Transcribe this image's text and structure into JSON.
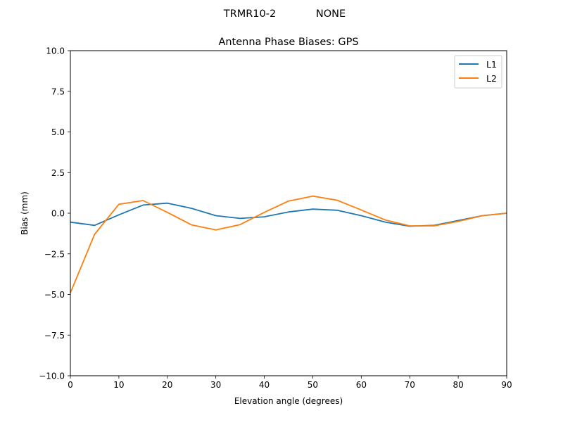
{
  "suptitle_left": "TRMR10-2",
  "suptitle_right": "NONE",
  "chart_data": {
    "type": "line",
    "title": "Antenna Phase Biases: GPS",
    "xlabel": "Elevation angle (degrees)",
    "ylabel": "Bias (mm)",
    "xlim": [
      0,
      90
    ],
    "ylim": [
      -10,
      10
    ],
    "xticks": [
      0,
      10,
      20,
      30,
      40,
      50,
      60,
      70,
      80,
      90
    ],
    "xtick_labels": [
      "0",
      "10",
      "20",
      "30",
      "40",
      "50",
      "60",
      "70",
      "80",
      "90"
    ],
    "yticks": [
      -10,
      -7.5,
      -5,
      -2.5,
      0,
      2.5,
      5,
      7.5,
      10
    ],
    "ytick_labels": [
      "−10.0",
      "−7.5",
      "−5.0",
      "−2.5",
      "0.0",
      "2.5",
      "5.0",
      "7.5",
      "10.0"
    ],
    "grid": false,
    "legend_position": "upper right",
    "x": [
      0,
      5,
      10,
      15,
      20,
      25,
      30,
      35,
      40,
      45,
      50,
      55,
      60,
      65,
      70,
      75,
      80,
      85,
      90
    ],
    "series": [
      {
        "name": "L1",
        "color": "#1f77b4",
        "values": [
          -0.55,
          -0.75,
          -0.1,
          0.5,
          0.62,
          0.3,
          -0.15,
          -0.32,
          -0.22,
          0.08,
          0.25,
          0.18,
          -0.15,
          -0.55,
          -0.8,
          -0.75,
          -0.45,
          -0.15,
          0.0
        ]
      },
      {
        "name": "L2",
        "color": "#ff7f0e",
        "values": [
          -4.9,
          -1.3,
          0.55,
          0.78,
          0.05,
          -0.72,
          -1.03,
          -0.7,
          0.05,
          0.75,
          1.05,
          0.8,
          0.2,
          -0.42,
          -0.78,
          -0.78,
          -0.5,
          -0.15,
          0.0
        ]
      }
    ]
  }
}
